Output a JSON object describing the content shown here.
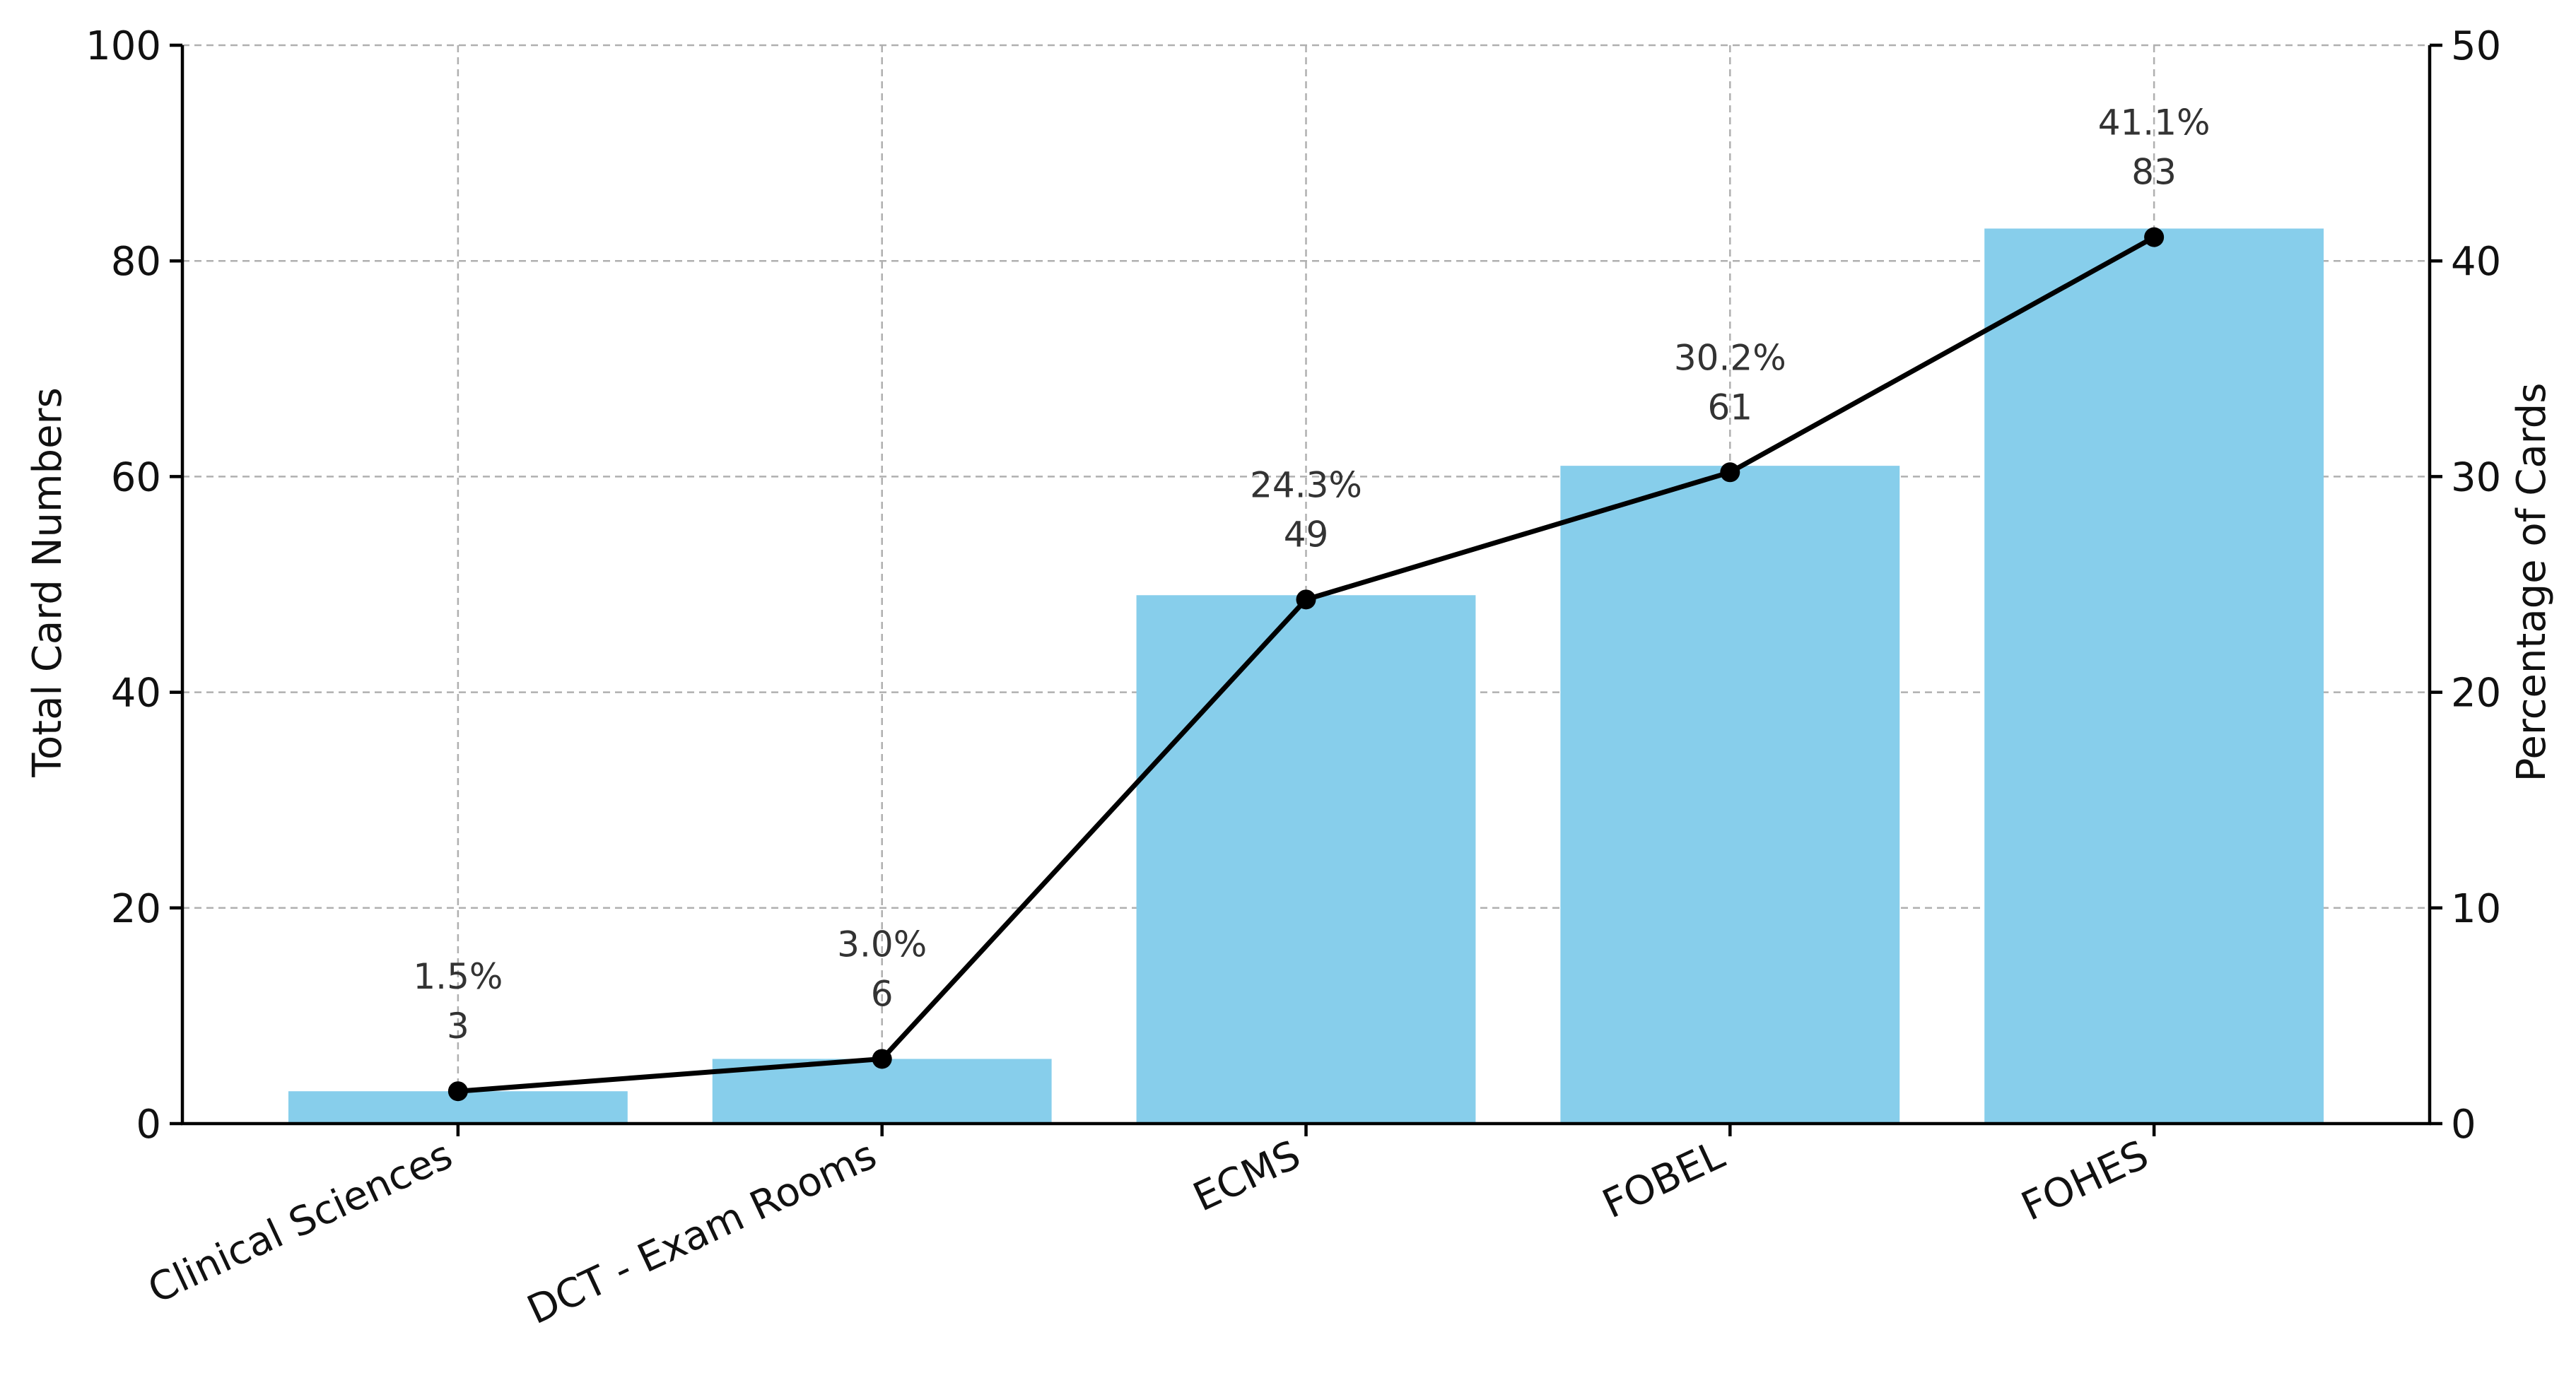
{
  "chart_data": {
    "type": "bar",
    "categories": [
      "Clinical Sciences",
      "DCT - Exam Rooms",
      "ECMS",
      "FOBEL",
      "FOHES"
    ],
    "series": [
      {
        "kind": "bar",
        "axis": "left",
        "values": [
          3,
          6,
          49,
          61,
          83
        ],
        "color": "#87CEEB"
      },
      {
        "kind": "line",
        "axis": "right",
        "values": [
          1.5,
          3.0,
          24.3,
          30.2,
          41.1
        ],
        "color": "#000000"
      }
    ],
    "bar_value_labels": [
      "3",
      "6",
      "49",
      "61",
      "83"
    ],
    "percent_labels": [
      "1.5%",
      "3.0%",
      "24.3%",
      "30.2%",
      "41.1%"
    ],
    "ylabel": "Total Card Numbers",
    "y2label": "Percentage of Cards",
    "ylim": [
      0,
      100
    ],
    "y2lim": [
      0,
      50
    ],
    "yticks": [
      0,
      20,
      40,
      60,
      80,
      100
    ],
    "y2ticks": [
      0,
      10,
      20,
      30,
      40,
      50
    ],
    "grid": true,
    "legend": "none"
  }
}
